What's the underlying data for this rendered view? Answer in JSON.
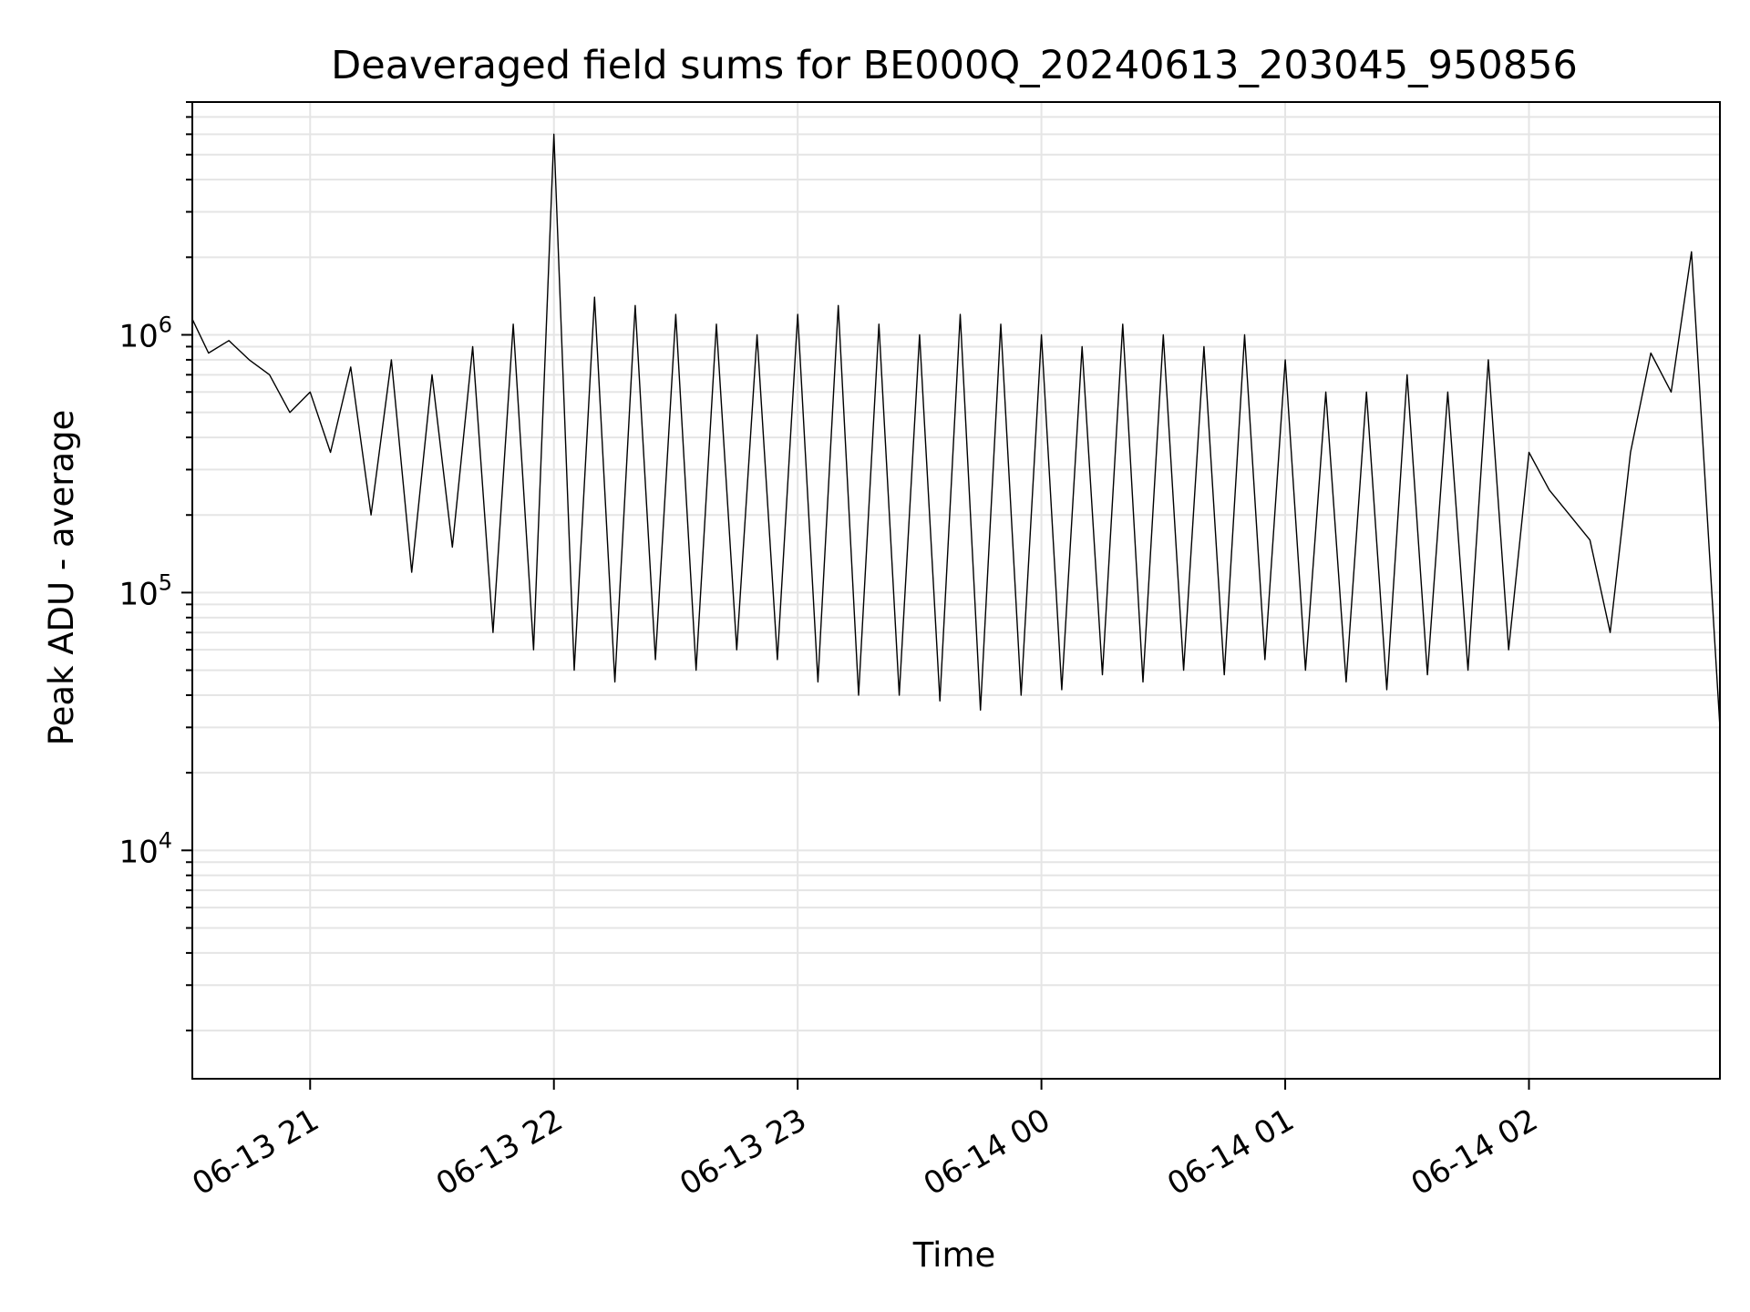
{
  "chart_data": {
    "type": "line",
    "title": "Deaveraged field sums for BE000Q_20240613_203045_950856",
    "xlabel": "Time",
    "ylabel": "Peak ADU - average",
    "y_scale": "log",
    "ylim": [
      1300,
      8000000
    ],
    "xlim": [
      "2024-06-13 20:31",
      "2024-06-14 02:47"
    ],
    "grid": true,
    "line_color": "#000000",
    "grid_color": "#e5e5e5",
    "x_ticks": [
      {
        "value": "2024-06-13 21:00",
        "label": "06-13 21"
      },
      {
        "value": "2024-06-13 22:00",
        "label": "06-13 22"
      },
      {
        "value": "2024-06-13 23:00",
        "label": "06-13 23"
      },
      {
        "value": "2024-06-14 00:00",
        "label": "06-14 00"
      },
      {
        "value": "2024-06-14 01:00",
        "label": "06-14 01"
      },
      {
        "value": "2024-06-14 02:00",
        "label": "06-14 02"
      }
    ],
    "y_ticks": [
      {
        "value": 10000,
        "base": "10",
        "exp": "4"
      },
      {
        "value": 100000,
        "base": "10",
        "exp": "5"
      },
      {
        "value": 1000000,
        "base": "10",
        "exp": "6"
      }
    ],
    "series": [
      {
        "x": [
          "2024-06-13 20:31",
          "2024-06-13 20:35",
          "2024-06-13 20:40",
          "2024-06-13 20:45",
          "2024-06-13 20:50",
          "2024-06-13 20:55",
          "2024-06-13 21:00",
          "2024-06-13 21:05",
          "2024-06-13 21:10",
          "2024-06-13 21:15",
          "2024-06-13 21:20",
          "2024-06-13 21:25",
          "2024-06-13 21:30",
          "2024-06-13 21:35",
          "2024-06-13 21:40",
          "2024-06-13 21:45",
          "2024-06-13 21:50",
          "2024-06-13 21:55",
          "2024-06-13 22:00",
          "2024-06-13 22:05",
          "2024-06-13 22:10",
          "2024-06-13 22:15",
          "2024-06-13 22:20",
          "2024-06-13 22:25",
          "2024-06-13 22:30",
          "2024-06-13 22:35",
          "2024-06-13 22:40",
          "2024-06-13 22:45",
          "2024-06-13 22:50",
          "2024-06-13 22:55",
          "2024-06-13 23:00",
          "2024-06-13 23:05",
          "2024-06-13 23:10",
          "2024-06-13 23:15",
          "2024-06-13 23:20",
          "2024-06-13 23:25",
          "2024-06-13 23:30",
          "2024-06-13 23:35",
          "2024-06-13 23:40",
          "2024-06-13 23:45",
          "2024-06-13 23:50",
          "2024-06-13 23:55",
          "2024-06-14 00:00",
          "2024-06-14 00:05",
          "2024-06-14 00:10",
          "2024-06-14 00:15",
          "2024-06-14 00:20",
          "2024-06-14 00:25",
          "2024-06-14 00:30",
          "2024-06-14 00:35",
          "2024-06-14 00:40",
          "2024-06-14 00:45",
          "2024-06-14 00:50",
          "2024-06-14 00:55",
          "2024-06-14 01:00",
          "2024-06-14 01:05",
          "2024-06-14 01:10",
          "2024-06-14 01:15",
          "2024-06-14 01:20",
          "2024-06-14 01:25",
          "2024-06-14 01:30",
          "2024-06-14 01:35",
          "2024-06-14 01:40",
          "2024-06-14 01:45",
          "2024-06-14 01:50",
          "2024-06-14 01:55",
          "2024-06-14 02:00",
          "2024-06-14 02:05",
          "2024-06-14 02:10",
          "2024-06-14 02:15",
          "2024-06-14 02:20",
          "2024-06-14 02:25",
          "2024-06-14 02:30",
          "2024-06-14 02:35",
          "2024-06-14 02:40",
          "2024-06-14 02:45",
          "2024-06-14 02:47"
        ],
        "y": [
          1150000,
          850000,
          950000,
          800000,
          700000,
          500000,
          600000,
          350000,
          750000,
          200000,
          800000,
          120000,
          700000,
          150000,
          900000,
          70000,
          1100000,
          60000,
          6000000,
          50000,
          1400000,
          45000,
          1300000,
          55000,
          1200000,
          50000,
          1100000,
          60000,
          1000000,
          55000,
          1200000,
          45000,
          1300000,
          40000,
          1100000,
          40000,
          1000000,
          38000,
          1200000,
          35000,
          1100000,
          40000,
          1000000,
          42000,
          900000,
          48000,
          1100000,
          45000,
          1000000,
          50000,
          900000,
          48000,
          1000000,
          55000,
          800000,
          50000,
          600000,
          45000,
          600000,
          42000,
          700000,
          48000,
          600000,
          50000,
          800000,
          60000,
          350000,
          250000,
          200000,
          160000,
          70000,
          350000,
          850000,
          600000,
          2100000,
          100000,
          30000
        ]
      }
    ]
  }
}
